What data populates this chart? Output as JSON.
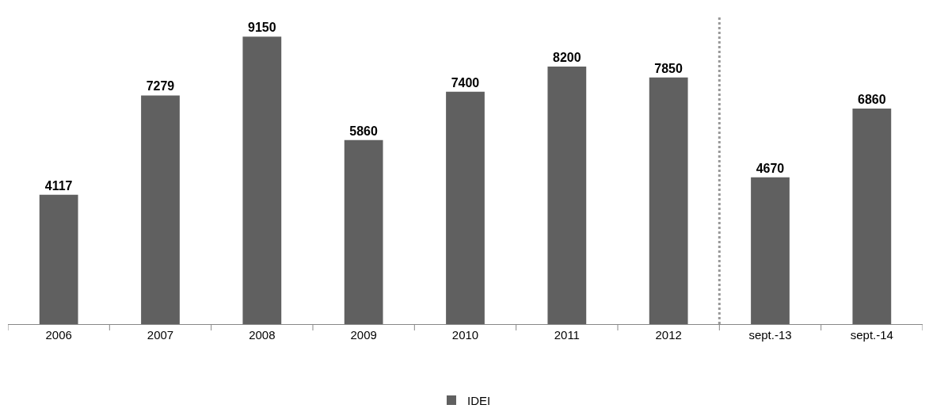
{
  "chart_data": {
    "type": "bar",
    "categories": [
      "2006",
      "2007",
      "2008",
      "2009",
      "2010",
      "2011",
      "2012",
      "sept.-13",
      "sept.-14"
    ],
    "series": [
      {
        "name": "IDEI",
        "color": "#606060",
        "values": [
          4117,
          7279,
          9150,
          5860,
          7400,
          8200,
          7850,
          4670,
          6860
        ]
      }
    ],
    "data_labels": true,
    "legend": "bottom",
    "grid": false
  }
}
